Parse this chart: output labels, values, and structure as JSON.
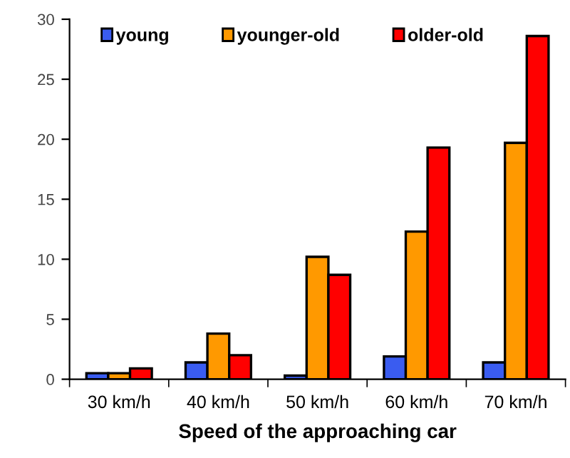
{
  "chart_data": {
    "type": "bar",
    "xlabel": "Speed of the approaching car",
    "categories": [
      "30 km/h",
      "40 km/h",
      "50 km/h",
      "60 km/h",
      "70 km/h"
    ],
    "series": [
      {
        "name": "young",
        "color": "#3a5cf0",
        "values": [
          0.5,
          1.4,
          0.3,
          1.9,
          1.4
        ]
      },
      {
        "name": "younger-old",
        "color": "#ff9900",
        "values": [
          0.5,
          3.8,
          10.2,
          12.3,
          19.7
        ]
      },
      {
        "name": "older-old",
        "color": "#ff0000",
        "values": [
          0.9,
          2.0,
          8.7,
          19.3,
          28.6
        ]
      }
    ],
    "ylim": [
      0,
      30
    ],
    "yticks": [
      0,
      5,
      10,
      15,
      20,
      25,
      30
    ],
    "grid": false,
    "legend": "top"
  }
}
